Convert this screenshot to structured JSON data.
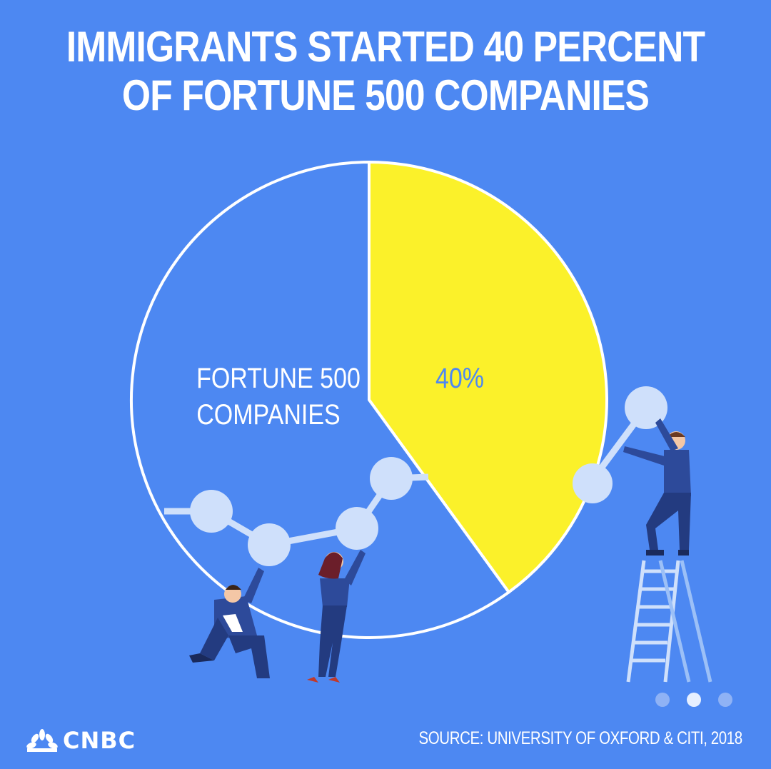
{
  "title_line1": "IMMIGRANTS STARTED 40 PERCENT",
  "title_line2": "OF FORTUNE 500 COMPANIES",
  "chart_data": {
    "type": "pie",
    "title": "IMMIGRANTS STARTED 40 PERCENT OF FORTUNE 500 COMPANIES",
    "slices": [
      {
        "name": "",
        "value": 40,
        "label": "40%",
        "color": "#fbf12a"
      },
      {
        "name": "FORTUNE 500 COMPANIES",
        "value": 60,
        "label": "FORTUNE 500 COMPANIES",
        "color": "#4d88f2"
      }
    ],
    "label_lines": [
      "FORTUNE 500",
      "COMPANIES"
    ]
  },
  "source": "SOURCE: UNIVERSITY OF OXFORD & CITI, 2018",
  "brand": "CNBC",
  "pagination": {
    "count": 3,
    "active": 1
  },
  "colors": {
    "background": "#4d88f2",
    "highlight": "#fbf12a",
    "outline": "#ffffff",
    "node": "#cfe0fb",
    "figure": "#2d4a9a"
  }
}
